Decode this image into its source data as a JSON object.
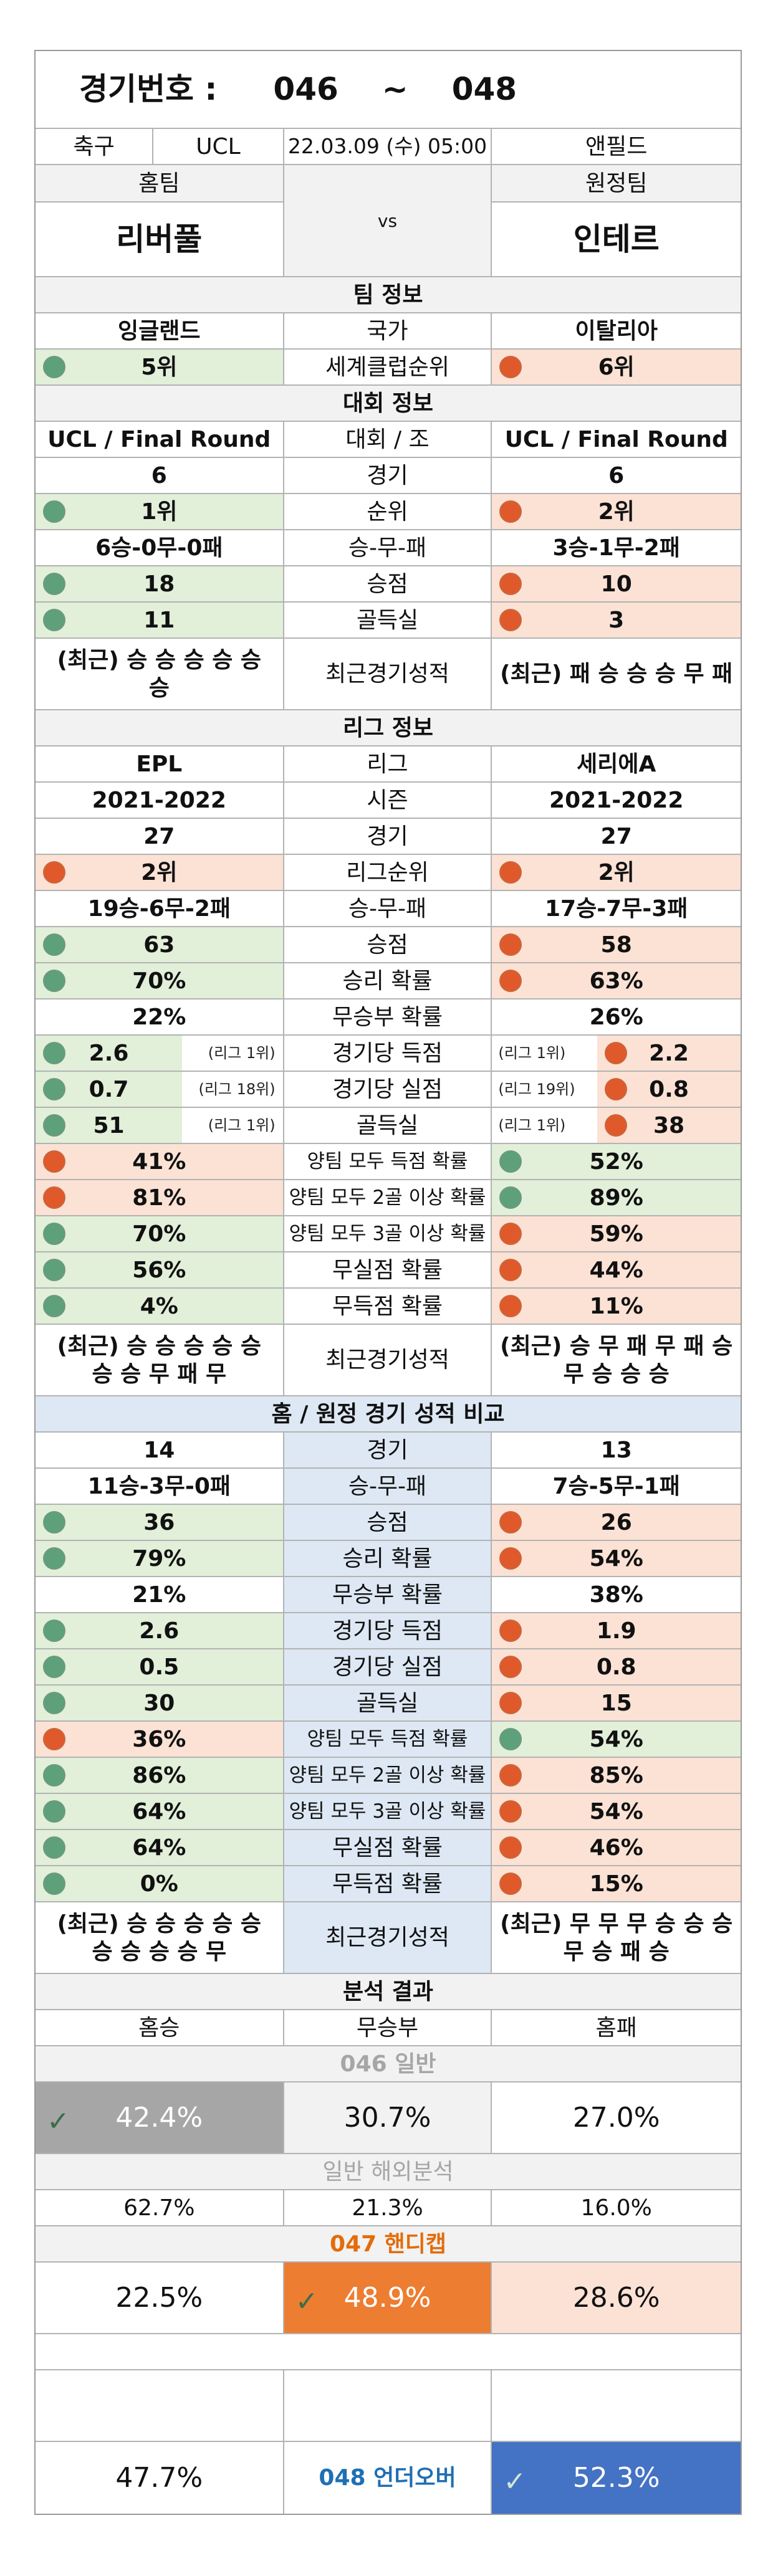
{
  "header": {
    "label": "경기번호 :",
    "from": "046",
    "sep": "~",
    "to": "048"
  },
  "match": {
    "sport": "축구",
    "league": "UCL",
    "datetime": "22.03.09 (수) 05:00",
    "venue": "앤필드",
    "home_label": "홈팀",
    "away_label": "원정팀",
    "home": "리버풀",
    "vs": "vs",
    "away": "인테르"
  },
  "team_info": {
    "title": "팀 정보",
    "country_label": "국가",
    "home_country": "잉글랜드",
    "away_country": "이탈리아",
    "rank_label": "세계클럽순위",
    "home_rank": "5위",
    "away_rank": "6위"
  },
  "comp_info": {
    "title": "대회 정보",
    "rows": [
      {
        "home": "UCL / Final Round",
        "label": "대회 / 조",
        "away": "UCL / Final Round",
        "hd": "",
        "ad": ""
      },
      {
        "home": "6",
        "label": "경기",
        "away": "6",
        "hd": "",
        "ad": ""
      },
      {
        "home": "1위",
        "label": "순위",
        "away": "2위",
        "hd": "g",
        "ad": "o"
      },
      {
        "home": "6승-0무-0패",
        "label": "승-무-패",
        "away": "3승-1무-2패",
        "hd": "",
        "ad": ""
      },
      {
        "home": "18",
        "label": "승점",
        "away": "10",
        "hd": "g",
        "ad": "o"
      },
      {
        "home": "11",
        "label": "골득실",
        "away": "3",
        "hd": "g",
        "ad": "o"
      }
    ],
    "recent_label": "최근경기성적",
    "home_recent": "(최근) 승 승 승 승 승 승",
    "away_recent": "(최근) 패 승 승 승 무 패"
  },
  "league_info": {
    "title": "리그 정보",
    "rows": [
      {
        "home": "EPL",
        "label": "리그",
        "away": "세리에A",
        "hd": "",
        "ad": ""
      },
      {
        "home": "2021-2022",
        "label": "시즌",
        "away": "2021-2022",
        "hd": "",
        "ad": ""
      },
      {
        "home": "27",
        "label": "경기",
        "away": "27",
        "hd": "",
        "ad": ""
      },
      {
        "home": "2위",
        "label": "리그순위",
        "away": "2위",
        "hd": "o",
        "ad": "o"
      },
      {
        "home": "19승-6무-2패",
        "label": "승-무-패",
        "away": "17승-7무-3패",
        "hd": "",
        "ad": ""
      },
      {
        "home": "63",
        "label": "승점",
        "away": "58",
        "hd": "g",
        "ad": "o"
      },
      {
        "home": "70%",
        "label": "승리 확률",
        "away": "63%",
        "hd": "g",
        "ad": "o"
      },
      {
        "home": "22%",
        "label": "무승부 확률",
        "away": "26%",
        "hd": "",
        "ad": ""
      }
    ],
    "note_rows": [
      {
        "home": "2.6",
        "home_note": "(리그 1위)",
        "label": "경기당 득점",
        "away": "2.2",
        "away_note": "(리그 1위)",
        "hd": "g",
        "ad": "o"
      },
      {
        "home": "0.7",
        "home_note": "(리그 18위)",
        "label": "경기당 실점",
        "away": "0.8",
        "away_note": "(리그 19위)",
        "hd": "g",
        "ad": "o"
      },
      {
        "home": "51",
        "home_note": "(리그 1위)",
        "label": "골득실",
        "away": "38",
        "away_note": "(리그 1위)",
        "hd": "g",
        "ad": "o"
      }
    ],
    "rows2": [
      {
        "home": "41%",
        "label": "양팀 모두 득점 확률",
        "away": "52%",
        "hd": "o",
        "ad": "g"
      },
      {
        "home": "81%",
        "label": "양팀 모두 2골 이상 확률",
        "away": "89%",
        "hd": "o",
        "ad": "g"
      },
      {
        "home": "70%",
        "label": "양팀 모두 3골 이상 확률",
        "away": "59%",
        "hd": "g",
        "ad": "o"
      },
      {
        "home": "56%",
        "label": "무실점 확률",
        "away": "44%",
        "hd": "g",
        "ad": "o"
      },
      {
        "home": "4%",
        "label": "무득점 확률",
        "away": "11%",
        "hd": "g",
        "ad": "o"
      }
    ],
    "recent_label": "최근경기성적",
    "home_recent": "(최근) 승 승 승 승 승 승 승 무 패 무",
    "away_recent": "(최근) 승 무 패 무 패 승 무 승 승 승"
  },
  "ha_info": {
    "title": "홈 / 원정 경기 성적 비교",
    "rows": [
      {
        "home": "14",
        "label": "경기",
        "away": "13",
        "hd": "",
        "ad": ""
      },
      {
        "home": "11승-3무-0패",
        "label": "승-무-패",
        "away": "7승-5무-1패",
        "hd": "",
        "ad": ""
      },
      {
        "home": "36",
        "label": "승점",
        "away": "26",
        "hd": "g",
        "ad": "o"
      },
      {
        "home": "79%",
        "label": "승리 확률",
        "away": "54%",
        "hd": "g",
        "ad": "o"
      },
      {
        "home": "21%",
        "label": "무승부 확률",
        "away": "38%",
        "hd": "",
        "ad": ""
      },
      {
        "home": "2.6",
        "label": "경기당 득점",
        "away": "1.9",
        "hd": "g",
        "ad": "o"
      },
      {
        "home": "0.5",
        "label": "경기당 실점",
        "away": "0.8",
        "hd": "g",
        "ad": "o"
      },
      {
        "home": "30",
        "label": "골득실",
        "away": "15",
        "hd": "g",
        "ad": "o"
      },
      {
        "home": "36%",
        "label": "양팀 모두 득점 확률",
        "away": "54%",
        "hd": "o",
        "ad": "g"
      },
      {
        "home": "86%",
        "label": "양팀 모두 2골 이상 확률",
        "away": "85%",
        "hd": "g",
        "ad": "o"
      },
      {
        "home": "64%",
        "label": "양팀 모두 3골 이상 확률",
        "away": "54%",
        "hd": "g",
        "ad": "o"
      },
      {
        "home": "64%",
        "label": "무실점 확률",
        "away": "46%",
        "hd": "g",
        "ad": "o"
      },
      {
        "home": "0%",
        "label": "무득점 확률",
        "away": "15%",
        "hd": "g",
        "ad": "o"
      }
    ],
    "recent_label": "최근경기성적",
    "home_recent": "(최근) 승 승 승 승 승 승 승 승 승 무",
    "away_recent": "(최근) 무 무 무 승 승 승 무 승 패 승"
  },
  "analysis": {
    "title": "분석 결과",
    "home_win": "홈승",
    "draw": "무승부",
    "home_loss": "홈패",
    "g046_title": "046 일반",
    "g046": [
      "42.4%",
      "30.7%",
      "27.0%"
    ],
    "overseas_title": "일반 해외분석",
    "overseas": [
      "62.7%",
      "21.3%",
      "16.0%"
    ],
    "g047_title": "047 핸디캡",
    "g047": [
      "22.5%",
      "48.9%",
      "28.6%"
    ],
    "g048_title": "048 언더오버",
    "g048": [
      "47.7%",
      "52.3%"
    ]
  },
  "colors": {
    "green": "#5ea07a",
    "orange": "#e0592b",
    "pick_gray": "#a6a6a6",
    "pick_orange": "#ed7d31",
    "pick_blue": "#4472c4"
  }
}
